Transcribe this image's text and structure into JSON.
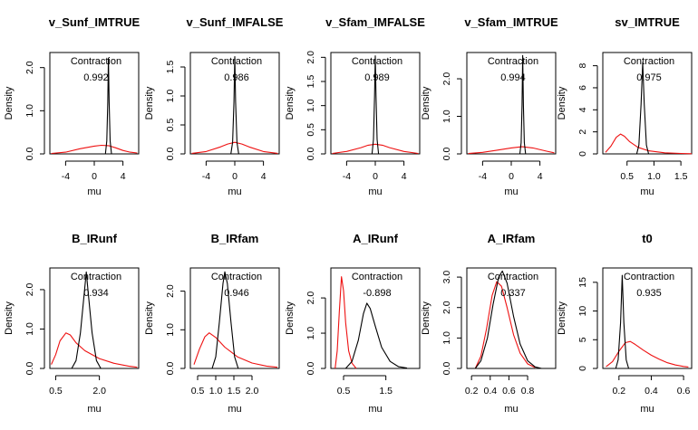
{
  "chart_data": [
    {
      "type": "line",
      "title": "v_Sunf_IMTRUE",
      "xlabel": "mu",
      "ylabel": "Density",
      "xlim": [
        -6.2,
        6.2
      ],
      "ylim": [
        0,
        2.35
      ],
      "xticks": [
        "-4",
        "0",
        "4"
      ],
      "yticks": [
        "0.0",
        "1.0",
        "2.0"
      ],
      "annotation_label": "Contraction",
      "annotation_value": "0.992",
      "series": [
        {
          "color": "#000000",
          "points": [
            [
              1.55,
              0
            ],
            [
              1.75,
              0.3
            ],
            [
              1.88,
              1.2
            ],
            [
              1.98,
              2.22
            ],
            [
              2.08,
              1.2
            ],
            [
              2.21,
              0.3
            ],
            [
              2.4,
              0
            ]
          ]
        },
        {
          "color": "#ee1111",
          "points": [
            [
              -6,
              0.01
            ],
            [
              -4,
              0.04
            ],
            [
              -2,
              0.12
            ],
            [
              0,
              0.18
            ],
            [
              1,
              0.2
            ],
            [
              2,
              0.19
            ],
            [
              3,
              0.14
            ],
            [
              4,
              0.08
            ],
            [
              5,
              0.04
            ],
            [
              6,
              0.02
            ]
          ]
        }
      ]
    },
    {
      "type": "line",
      "title": "v_Sunf_IMFALSE",
      "xlabel": "mu",
      "ylabel": "Density",
      "xlim": [
        -6.2,
        6.2
      ],
      "ylim": [
        0,
        1.75
      ],
      "xticks": [
        "-4",
        "0",
        "4"
      ],
      "yticks": [
        "0.0",
        "0.5",
        "1.0",
        "1.5"
      ],
      "annotation_label": "Contraction",
      "annotation_value": "0.986",
      "series": [
        {
          "color": "#000000",
          "points": [
            [
              -0.55,
              0
            ],
            [
              -0.3,
              0.2
            ],
            [
              -0.12,
              0.9
            ],
            [
              0,
              1.68
            ],
            [
              0.12,
              0.9
            ],
            [
              0.3,
              0.2
            ],
            [
              0.55,
              0
            ]
          ]
        },
        {
          "color": "#ee1111",
          "points": [
            [
              -6,
              0.01
            ],
            [
              -4,
              0.04
            ],
            [
              -2,
              0.12
            ],
            [
              -1,
              0.17
            ],
            [
              0,
              0.2
            ],
            [
              1,
              0.17
            ],
            [
              2,
              0.12
            ],
            [
              4,
              0.04
            ],
            [
              6,
              0.01
            ]
          ]
        }
      ]
    },
    {
      "type": "line",
      "title": "v_Sfam_IMFALSE",
      "xlabel": "mu",
      "ylabel": "Density",
      "xlim": [
        -6.2,
        6.2
      ],
      "ylim": [
        0,
        2.1
      ],
      "xticks": [
        "-4",
        "0",
        "4"
      ],
      "yticks": [
        "0.0",
        "0.5",
        "1.0",
        "1.5",
        "2.0"
      ],
      "annotation_label": "Contraction",
      "annotation_value": "0.989",
      "series": [
        {
          "color": "#000000",
          "points": [
            [
              -0.45,
              0
            ],
            [
              -0.25,
              0.3
            ],
            [
              -0.1,
              1.2
            ],
            [
              0,
              2.03
            ],
            [
              0.1,
              1.2
            ],
            [
              0.25,
              0.3
            ],
            [
              0.45,
              0
            ]
          ]
        },
        {
          "color": "#ee1111",
          "points": [
            [
              -6,
              0.01
            ],
            [
              -4,
              0.05
            ],
            [
              -2,
              0.13
            ],
            [
              -1,
              0.18
            ],
            [
              0,
              0.2
            ],
            [
              1,
              0.18
            ],
            [
              2,
              0.13
            ],
            [
              4,
              0.05
            ],
            [
              6,
              0.01
            ]
          ]
        }
      ]
    },
    {
      "type": "line",
      "title": "v_Sfam_IMTRUE",
      "xlabel": "mu",
      "ylabel": "Density",
      "xlim": [
        -6.2,
        6.2
      ],
      "ylim": [
        0,
        2.7
      ],
      "xticks": [
        "-4",
        "0",
        "4"
      ],
      "yticks": [
        "0.0",
        "1.0",
        "2.0"
      ],
      "annotation_label": "Contraction",
      "annotation_value": "0.994",
      "series": [
        {
          "color": "#000000",
          "points": [
            [
              1.2,
              0
            ],
            [
              1.38,
              0.3
            ],
            [
              1.5,
              1.3
            ],
            [
              1.6,
              2.62
            ],
            [
              1.7,
              1.3
            ],
            [
              1.82,
              0.3
            ],
            [
              2,
              0
            ]
          ]
        },
        {
          "color": "#ee1111",
          "points": [
            [
              -6,
              0.01
            ],
            [
              -4,
              0.04
            ],
            [
              -2,
              0.1
            ],
            [
              0,
              0.16
            ],
            [
              1.5,
              0.19
            ],
            [
              3,
              0.16
            ],
            [
              5,
              0.07
            ],
            [
              6,
              0.03
            ]
          ]
        }
      ]
    },
    {
      "type": "line",
      "title": "sv_IMTRUE",
      "xlabel": "mu",
      "ylabel": "Density",
      "xlim": [
        0.05,
        1.7
      ],
      "ylim": [
        0,
        9.2
      ],
      "xticks": [
        "0.5",
        "1.0",
        "1.5"
      ],
      "yticks": [
        "0",
        "2",
        "4",
        "6",
        "8"
      ],
      "annotation_label": "Contraction",
      "annotation_value": "0.975",
      "series": [
        {
          "color": "#000000",
          "points": [
            [
              0.68,
              0
            ],
            [
              0.72,
              0.8
            ],
            [
              0.76,
              4.5
            ],
            [
              0.79,
              8.3
            ],
            [
              0.82,
              4.5
            ],
            [
              0.86,
              0.8
            ],
            [
              0.9,
              0
            ]
          ]
        },
        {
          "color": "#ee1111",
          "points": [
            [
              0.1,
              0.15
            ],
            [
              0.2,
              0.7
            ],
            [
              0.3,
              1.5
            ],
            [
              0.38,
              1.8
            ],
            [
              0.45,
              1.6
            ],
            [
              0.55,
              1.1
            ],
            [
              0.7,
              0.6
            ],
            [
              0.9,
              0.28
            ],
            [
              1.2,
              0.1
            ],
            [
              1.5,
              0.04
            ],
            [
              1.7,
              0.02
            ]
          ]
        }
      ]
    },
    {
      "type": "line",
      "title": "B_IRunf",
      "xlabel": "mu",
      "ylabel": "Density",
      "xlim": [
        0.3,
        3.35
      ],
      "ylim": [
        0,
        2.55
      ],
      "xticks": [
        "0.5",
        "2.0"
      ],
      "yticks": [
        "0.0",
        "1.0",
        "2.0"
      ],
      "annotation_label": "Contraction",
      "annotation_value": "0.934",
      "series": [
        {
          "color": "#000000",
          "points": [
            [
              1.05,
              0
            ],
            [
              1.2,
              0.2
            ],
            [
              1.35,
              0.9
            ],
            [
              1.48,
              1.9
            ],
            [
              1.55,
              2.45
            ],
            [
              1.62,
              1.9
            ],
            [
              1.75,
              0.9
            ],
            [
              1.9,
              0.2
            ],
            [
              2.05,
              0
            ]
          ]
        },
        {
          "color": "#ee1111",
          "points": [
            [
              0.35,
              0.1
            ],
            [
              0.5,
              0.35
            ],
            [
              0.65,
              0.7
            ],
            [
              0.85,
              0.9
            ],
            [
              1.0,
              0.85
            ],
            [
              1.2,
              0.65
            ],
            [
              1.5,
              0.45
            ],
            [
              2.0,
              0.25
            ],
            [
              2.5,
              0.13
            ],
            [
              3.0,
              0.06
            ],
            [
              3.3,
              0.03
            ]
          ]
        }
      ]
    },
    {
      "type": "line",
      "title": "B_IRfam",
      "xlabel": "mu",
      "ylabel": "Density",
      "xlim": [
        0.3,
        2.75
      ],
      "ylim": [
        0,
        2.6
      ],
      "xticks": [
        "0.5",
        "1.0",
        "1.5",
        "2.0"
      ],
      "yticks": [
        "0.0",
        "1.0",
        "2.0"
      ],
      "annotation_label": "Contraction",
      "annotation_value": "0.946",
      "series": [
        {
          "color": "#000000",
          "points": [
            [
              0.9,
              0
            ],
            [
              1.0,
              0.3
            ],
            [
              1.1,
              1.2
            ],
            [
              1.2,
              2.2
            ],
            [
              1.25,
              2.5
            ],
            [
              1.32,
              2.2
            ],
            [
              1.42,
              1.2
            ],
            [
              1.52,
              0.3
            ],
            [
              1.62,
              0
            ]
          ]
        },
        {
          "color": "#ee1111",
          "points": [
            [
              0.4,
              0.1
            ],
            [
              0.55,
              0.5
            ],
            [
              0.7,
              0.82
            ],
            [
              0.82,
              0.92
            ],
            [
              1.0,
              0.8
            ],
            [
              1.25,
              0.55
            ],
            [
              1.6,
              0.3
            ],
            [
              2.0,
              0.14
            ],
            [
              2.4,
              0.06
            ],
            [
              2.7,
              0.03
            ]
          ]
        }
      ]
    },
    {
      "type": "line",
      "title": "A_IRunf",
      "xlabel": "mu",
      "ylabel": "Density",
      "xlim": [
        0.2,
        2.3
      ],
      "ylim": [
        0,
        2.85
      ],
      "xticks": [
        "0.5",
        "1.5"
      ],
      "yticks": [
        "0.0",
        "1.0",
        "2.0"
      ],
      "annotation_label": "Contraction",
      "annotation_value": "-0.898",
      "series": [
        {
          "color": "#000000",
          "points": [
            [
              0.55,
              0
            ],
            [
              0.7,
              0.2
            ],
            [
              0.85,
              0.8
            ],
            [
              0.97,
              1.55
            ],
            [
              1.05,
              1.85
            ],
            [
              1.13,
              1.7
            ],
            [
              1.25,
              1.2
            ],
            [
              1.4,
              0.6
            ],
            [
              1.6,
              0.2
            ],
            [
              1.8,
              0.05
            ],
            [
              2.0,
              0.01
            ]
          ]
        },
        {
          "color": "#ee1111",
          "points": [
            [
              0.3,
              0
            ],
            [
              0.35,
              0.5
            ],
            [
              0.4,
              1.6
            ],
            [
              0.45,
              2.6
            ],
            [
              0.5,
              2.2
            ],
            [
              0.55,
              1.3
            ],
            [
              0.62,
              0.5
            ],
            [
              0.7,
              0.15
            ],
            [
              0.8,
              0
            ]
          ]
        }
      ]
    },
    {
      "type": "line",
      "title": "A_IRfam",
      "xlabel": "mu",
      "ylabel": "Density",
      "xlim": [
        0.15,
        1.1
      ],
      "ylim": [
        0,
        3.3
      ],
      "xticks": [
        "0.2",
        "0.4",
        "0.6",
        "0.8"
      ],
      "yticks": [
        "0.0",
        "1.0",
        "2.0",
        "3.0"
      ],
      "annotation_label": "Contraction",
      "annotation_value": "0.337",
      "series": [
        {
          "color": "#000000",
          "points": [
            [
              0.24,
              0
            ],
            [
              0.3,
              0.25
            ],
            [
              0.37,
              1.0
            ],
            [
              0.43,
              2.1
            ],
            [
              0.49,
              3.0
            ],
            [
              0.53,
              3.2
            ],
            [
              0.58,
              2.8
            ],
            [
              0.65,
              1.7
            ],
            [
              0.72,
              0.8
            ],
            [
              0.8,
              0.25
            ],
            [
              0.88,
              0.05
            ],
            [
              0.95,
              0
            ]
          ]
        },
        {
          "color": "#ee1111",
          "points": [
            [
              0.24,
              0
            ],
            [
              0.3,
              0.4
            ],
            [
              0.36,
              1.3
            ],
            [
              0.42,
              2.4
            ],
            [
              0.47,
              2.85
            ],
            [
              0.52,
              2.7
            ],
            [
              0.58,
              2.0
            ],
            [
              0.65,
              1.1
            ],
            [
              0.72,
              0.5
            ],
            [
              0.8,
              0.15
            ],
            [
              0.88,
              0.03
            ]
          ]
        }
      ]
    },
    {
      "type": "line",
      "title": "t0",
      "xlabel": "mu",
      "ylabel": "Density",
      "xlim": [
        0.1,
        0.65
      ],
      "ylim": [
        0,
        17.5
      ],
      "xticks": [
        "0.2",
        "0.4",
        "0.6"
      ],
      "yticks": [
        "0",
        "5",
        "10",
        "15"
      ],
      "annotation_label": "Contraction",
      "annotation_value": "0.935",
      "series": [
        {
          "color": "#000000",
          "points": [
            [
              0.18,
              0
            ],
            [
              0.195,
              1.5
            ],
            [
              0.21,
              8
            ],
            [
              0.22,
              16.2
            ],
            [
              0.23,
              8
            ],
            [
              0.245,
              1.5
            ],
            [
              0.26,
              0
            ]
          ]
        },
        {
          "color": "#ee1111",
          "points": [
            [
              0.12,
              0.3
            ],
            [
              0.16,
              1.2
            ],
            [
              0.2,
              3.0
            ],
            [
              0.24,
              4.5
            ],
            [
              0.27,
              4.7
            ],
            [
              0.3,
              4.2
            ],
            [
              0.35,
              3.2
            ],
            [
              0.4,
              2.3
            ],
            [
              0.45,
              1.6
            ],
            [
              0.5,
              1.0
            ],
            [
              0.55,
              0.6
            ],
            [
              0.6,
              0.35
            ],
            [
              0.63,
              0.25
            ]
          ]
        }
      ]
    }
  ]
}
